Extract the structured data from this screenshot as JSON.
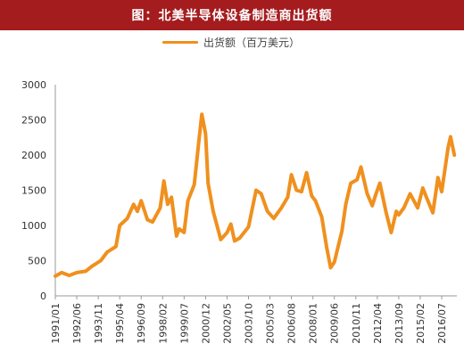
{
  "chart_data": {
    "type": "line",
    "title": "图：北美半导体设备制造商出货额",
    "legend_position": "top",
    "series": [
      {
        "name": "出货额（百万美元）",
        "color": "#f0901e",
        "points": [
          [
            "1991/01",
            280
          ],
          [
            "1991/06",
            330
          ],
          [
            "1991/12",
            290
          ],
          [
            "1992/06",
            330
          ],
          [
            "1993/01",
            350
          ],
          [
            "1993/06",
            420
          ],
          [
            "1994/01",
            500
          ],
          [
            "1994/06",
            620
          ],
          [
            "1995/01",
            700
          ],
          [
            "1995/04",
            1000
          ],
          [
            "1995/10",
            1100
          ],
          [
            "1996/03",
            1300
          ],
          [
            "1996/06",
            1200
          ],
          [
            "1996/09",
            1350
          ],
          [
            "1997/02",
            1080
          ],
          [
            "1997/06",
            1050
          ],
          [
            "1997/12",
            1250
          ],
          [
            "1998/03",
            1630
          ],
          [
            "1998/06",
            1300
          ],
          [
            "1998/09",
            1400
          ],
          [
            "1999/01",
            850
          ],
          [
            "1999/03",
            950
          ],
          [
            "1999/07",
            900
          ],
          [
            "1999/10",
            1350
          ],
          [
            "2000/03",
            1580
          ],
          [
            "2000/07",
            2250
          ],
          [
            "2000/09",
            2580
          ],
          [
            "2000/12",
            2300
          ],
          [
            "2001/02",
            1600
          ],
          [
            "2001/06",
            1200
          ],
          [
            "2001/12",
            800
          ],
          [
            "2002/05",
            900
          ],
          [
            "2002/08",
            1020
          ],
          [
            "2002/11",
            780
          ],
          [
            "2003/03",
            820
          ],
          [
            "2003/10",
            980
          ],
          [
            "2004/04",
            1500
          ],
          [
            "2004/08",
            1450
          ],
          [
            "2005/01",
            1200
          ],
          [
            "2005/06",
            1100
          ],
          [
            "2005/12",
            1250
          ],
          [
            "2006/05",
            1400
          ],
          [
            "2006/08",
            1720
          ],
          [
            "2006/12",
            1500
          ],
          [
            "2007/04",
            1480
          ],
          [
            "2007/08",
            1750
          ],
          [
            "2007/12",
            1420
          ],
          [
            "2008/03",
            1350
          ],
          [
            "2008/08",
            1120
          ],
          [
            "2008/12",
            680
          ],
          [
            "2009/03",
            400
          ],
          [
            "2009/06",
            480
          ],
          [
            "2009/12",
            920
          ],
          [
            "2010/03",
            1300
          ],
          [
            "2010/07",
            1600
          ],
          [
            "2010/12",
            1650
          ],
          [
            "2011/03",
            1830
          ],
          [
            "2011/08",
            1450
          ],
          [
            "2011/12",
            1280
          ],
          [
            "2012/03",
            1450
          ],
          [
            "2012/06",
            1600
          ],
          [
            "2012/11",
            1180
          ],
          [
            "2013/03",
            900
          ],
          [
            "2013/07",
            1200
          ],
          [
            "2013/09",
            1150
          ],
          [
            "2014/01",
            1250
          ],
          [
            "2014/06",
            1450
          ],
          [
            "2014/12",
            1250
          ],
          [
            "2015/04",
            1530
          ],
          [
            "2015/08",
            1350
          ],
          [
            "2015/12",
            1180
          ],
          [
            "2016/04",
            1680
          ],
          [
            "2016/07",
            1480
          ],
          [
            "2016/12",
            2100
          ],
          [
            "2017/02",
            2260
          ],
          [
            "2017/05",
            2000
          ]
        ]
      }
    ],
    "x_tick_labels": [
      "1991/01",
      "1992/06",
      "1993/11",
      "1995/04",
      "1996/09",
      "1998/02",
      "1999/07",
      "2000/12",
      "2002/05",
      "2003/10",
      "2005/03",
      "2006/08",
      "2008/01",
      "2009/06",
      "2010/11",
      "2012/04",
      "2013/09",
      "2015/02",
      "2016/07"
    ],
    "y_tick_labels": [
      "0",
      "500",
      "1000",
      "1500",
      "2000",
      "2500",
      "3000"
    ],
    "ylim": [
      0,
      3000
    ],
    "xlim": [
      "1991/01",
      "2017/07"
    ],
    "grid": false
  }
}
